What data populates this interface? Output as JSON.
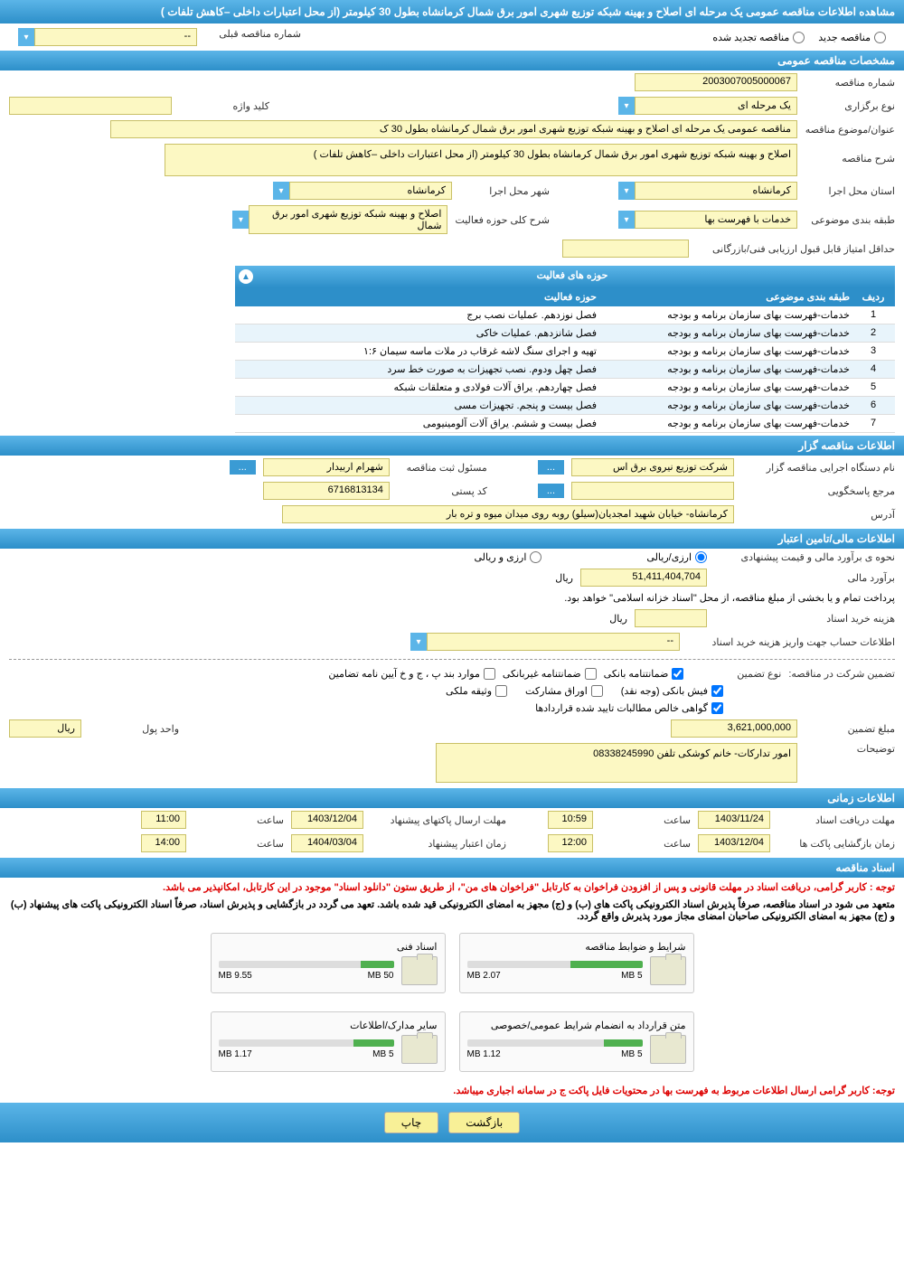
{
  "header": {
    "title": "مشاهده اطلاعات مناقصه عمومی یک مرحله ای اصلاح و بهینه شبکه توزیع شهری امور برق شمال کرمانشاه بطول 30 کیلومتر (از محل اعتبارات داخلی –کاهش تلفات )"
  },
  "tender_type": {
    "new_label": "مناقصه جدید",
    "renewed_label": "مناقصه تجدید شده",
    "prev_number_label": "شماره مناقصه قبلی",
    "prev_number": "--"
  },
  "general": {
    "section_title": "مشخصات مناقصه عمومی",
    "number_label": "شماره مناقصه",
    "number": "2003007005000067",
    "type_label": "نوع برگزاری",
    "type": "یک مرحله ای",
    "keyword_label": "کلید واژه",
    "subject_label": "عنوان/موضوع مناقصه",
    "subject": "مناقصه عمومی یک مرحله ای اصلاح و بهینه شبکه توزیع شهری امور برق شمال کرمانشاه بطول 30 ک",
    "desc_label": "شرح مناقصه",
    "desc": "اصلاح و بهینه شبکه توزیع شهری امور برق شمال کرمانشاه بطول 30 کیلومتر (از محل اعتبارات داخلی –کاهش تلفات )",
    "province_label": "استان محل اجرا",
    "province": "کرمانشاه",
    "city_label": "شهر محل اجرا",
    "city": "کرمانشاه",
    "category_label": "طبقه بندی موضوعی",
    "category": "خدمات با فهرست بها",
    "activity_desc_label": "شرح کلی حوزه فعالیت",
    "activity_desc": "اصلاح و بهینه شبکه توزیع شهری امور برق شمال",
    "min_score_label": "حداقل امتیاز قابل قبول ارزیابی فنی/بازرگانی"
  },
  "activities": {
    "title": "حوزه های فعالیت",
    "col_row": "ردیف",
    "col_category": "طبقه بندی موضوعی",
    "col_activity": "حوزه فعالیت",
    "rows": [
      {
        "n": "1",
        "cat": "خدمات-فهرست بهای سازمان برنامه و بودجه",
        "act": "فصل نوزدهم. عملیات نصب برج"
      },
      {
        "n": "2",
        "cat": "خدمات-فهرست بهای سازمان برنامه و بودجه",
        "act": "فصل شانزدهم. عملیات خاکی"
      },
      {
        "n": "3",
        "cat": "خدمات-فهرست بهای سازمان برنامه و بودجه",
        "act": "تهیه و اجرای سنگ لاشه غرقاب در ملات ماسه سیمان ۱:۶"
      },
      {
        "n": "4",
        "cat": "خدمات-فهرست بهای سازمان برنامه و بودجه",
        "act": "فصل چهل ودوم. نصب تجهیزات به صورت خط سرد"
      },
      {
        "n": "5",
        "cat": "خدمات-فهرست بهای سازمان برنامه و بودجه",
        "act": "فصل چهاردهم. یراق آلات فولادی و متعلقات شبکه"
      },
      {
        "n": "6",
        "cat": "خدمات-فهرست بهای سازمان برنامه و بودجه",
        "act": "فصل بیست و پنجم. تجهیزات مسی"
      },
      {
        "n": "7",
        "cat": "خدمات-فهرست بهای سازمان برنامه و بودجه",
        "act": "فصل بیست و ششم. یراق آلات آلومینیومی"
      }
    ]
  },
  "organizer": {
    "section_title": "اطلاعات مناقصه گزار",
    "org_label": "نام دستگاه اجرایی مناقصه گزار",
    "org": "شرکت توزیع نیروی برق اس",
    "registrar_label": "مسئول ثبت مناقصه",
    "registrar": "شهرام اربیدار",
    "responder_label": "مرجع پاسخگویی",
    "postal_label": "کد پستی",
    "postal": "6716813134",
    "address_label": "آدرس",
    "address": "کرمانشاه- خیابان شهید امجدیان(سیلو) روبه روی میدان میوه و تره بار",
    "dots": "..."
  },
  "financial": {
    "section_title": "اطلاعات مالی/تامین اعتبار",
    "estimate_method_label": "نحوه ی برآورد مالی و قیمت پیشنهادی",
    "rial_option": "ارزی/ریالی",
    "foreign_option": "ارزی و ریالی",
    "estimate_label": "برآورد مالی",
    "estimate": "51,411,404,704",
    "unit_rial": "ریال",
    "payment_note": "پرداخت تمام و یا بخشی از مبلغ مناقصه، از محل \"اسناد خزانه اسلامی\" خواهد بود.",
    "doc_cost_label": "هزینه خرید اسناد",
    "account_label": "اطلاعات حساب جهت واریز هزینه خرید اسناد",
    "account": "--"
  },
  "guarantee": {
    "title_label": "تضمین شرکت در مناقصه:",
    "type_label": "نوع تضمین",
    "opt_bank": "ضمانتنامه بانکی",
    "opt_nonbank": "ضمانتنامه غیربانکی",
    "opt_bondp": "موارد بند پ ، ج و خ آیین نامه تضامین",
    "opt_cash": "فیش بانکی (وجه نقد)",
    "opt_securities": "اوراق مشارکت",
    "opt_property": "وثیقه ملکی",
    "opt_receivables": "گواهی خالص مطالبات تایید شده قراردادها",
    "amount_label": "مبلغ تضمین",
    "amount": "3,621,000,000",
    "unit_label": "واحد پول",
    "unit": "ریال",
    "notes_label": "توضیحات",
    "notes": "امور تدارکات- خانم کوشکی تلفن 08338245990"
  },
  "timing": {
    "section_title": "اطلاعات زمانی",
    "doc_receive_label": "مهلت دریافت اسناد",
    "doc_receive_date": "1403/11/24",
    "doc_receive_time": "10:59",
    "envelope_deadline_label": "مهلت ارسال پاکتهای پیشنهاد",
    "envelope_deadline_date": "1403/12/04",
    "envelope_deadline_time": "11:00",
    "open_label": "زمان بازگشایی پاکت ها",
    "open_date": "1403/12/04",
    "open_time": "12:00",
    "validity_label": "زمان اعتبار پیشنهاد",
    "validity_date": "1404/03/04",
    "validity_time": "14:00",
    "hour_label": "ساعت"
  },
  "documents": {
    "section_title": "اسناد مناقصه",
    "notice1": "توجه : کاربر گرامی، دریافت اسناد در مهلت قانونی و پس از افزودن فراخوان به کارتابل \"فراخوان های من\"، از طریق ستون \"دانلود اسناد\" موجود در این کارتابل، امکانپذیر می باشد.",
    "notice2": "متعهد می شود در اسناد مناقصه، صرفاً پذیرش اسناد الکترونیکی پاکت های (ب) و (ج) مجهز به امضای الکترونیکی قید شده باشد. تعهد می گردد در بازگشایی و پذیرش اسناد، صرفاً اسناد الکترونیکی پاکت های پیشنهاد (ب) و (ج) مجهز به امضای الکترونیکی صاحبان امضای مجاز مورد پذیرش واقع گردد.",
    "files": [
      {
        "title": "شرایط و ضوابط مناقصه",
        "used": "2.07 MB",
        "total": "5 MB",
        "pct": 41
      },
      {
        "title": "اسناد فنی",
        "used": "9.55 MB",
        "total": "50 MB",
        "pct": 19
      },
      {
        "title": "متن قرارداد به انضمام شرایط عمومی/خصوصی",
        "used": "1.12 MB",
        "total": "5 MB",
        "pct": 22
      },
      {
        "title": "سایر مدارک/اطلاعات",
        "used": "1.17 MB",
        "total": "5 MB",
        "pct": 23
      }
    ],
    "bottom_notice": "توجه: کاربر گرامی ارسال اطلاعات مربوط به فهرست بها در محتویات فایل پاکت ج در سامانه اجباری میباشد."
  },
  "buttons": {
    "back": "بازگشت",
    "print": "چاپ"
  },
  "colors": {
    "header_bg": "#3a9bd4",
    "field_bg": "#fcf8c3",
    "field_border": "#c9c066",
    "btn_bg": "#f8f097",
    "progress": "#4fb04f",
    "notice_red": "#d00"
  }
}
